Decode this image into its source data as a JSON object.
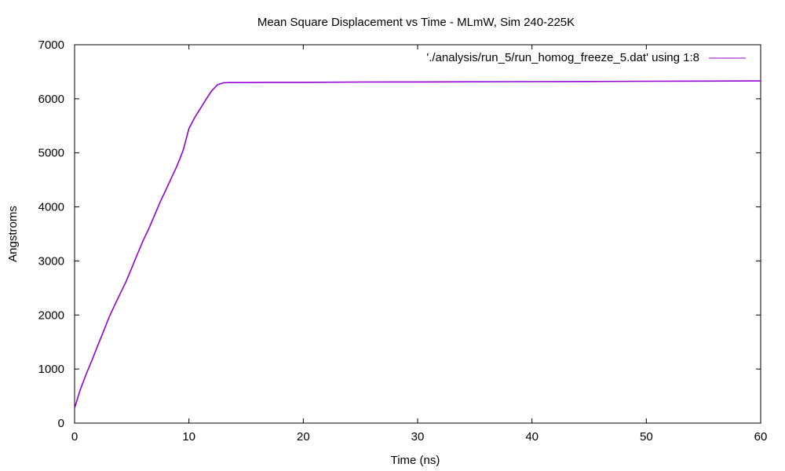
{
  "chart_data": {
    "type": "line",
    "title": "Mean Square Displacement vs Time - MLmW, Sim 240-225K",
    "xlabel": "Time (ns)",
    "ylabel": "Angstroms",
    "xlim": [
      0,
      60
    ],
    "ylim": [
      0,
      7000
    ],
    "xticks": [
      0,
      10,
      20,
      30,
      40,
      50,
      60
    ],
    "yticks": [
      0,
      1000,
      2000,
      3000,
      4000,
      5000,
      6000,
      7000
    ],
    "grid": false,
    "legend_position": "top-right",
    "series": [
      {
        "name": "'./analysis/run_5/run_homog_freeze_5.dat' using 1:8",
        "color": "#9400d3",
        "x": [
          0,
          0.5,
          1,
          1.5,
          2,
          2.5,
          3,
          3.5,
          4,
          4.5,
          5,
          5.5,
          6,
          6.5,
          7,
          7.5,
          8,
          8.5,
          9,
          9.5,
          10,
          10.5,
          11,
          11.5,
          12,
          12.5,
          13,
          13.5,
          14,
          15,
          17,
          20,
          25,
          30,
          35,
          40,
          45,
          50,
          55,
          60
        ],
        "y": [
          280,
          620,
          900,
          1150,
          1420,
          1680,
          1950,
          2180,
          2400,
          2620,
          2870,
          3130,
          3380,
          3600,
          3850,
          4100,
          4320,
          4550,
          4780,
          5050,
          5450,
          5650,
          5820,
          5990,
          6150,
          6260,
          6295,
          6300,
          6300,
          6300,
          6305,
          6305,
          6310,
          6312,
          6315,
          6318,
          6320,
          6325,
          6328,
          6330
        ]
      }
    ]
  }
}
